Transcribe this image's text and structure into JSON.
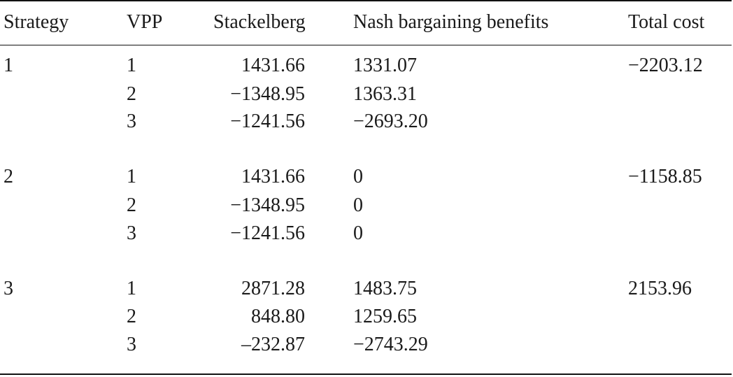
{
  "table": {
    "headers": {
      "strategy": "Strategy",
      "vpp": "VPP",
      "stackelberg": "Stackelberg",
      "nash": "Nash bargaining benefits",
      "total_cost": "Total cost"
    },
    "groups": [
      {
        "strategy": "1",
        "total_cost": "−2203.12",
        "rows": [
          {
            "vpp": "1",
            "stackelberg": "1431.66",
            "nash": "1331.07"
          },
          {
            "vpp": "2",
            "stackelberg": "−1348.95",
            "nash": "1363.31"
          },
          {
            "vpp": "3",
            "stackelberg": "−1241.56",
            "nash": "−2693.20"
          }
        ]
      },
      {
        "strategy": "2",
        "total_cost": "−1158.85",
        "rows": [
          {
            "vpp": "1",
            "stackelberg": "1431.66",
            "nash": "0"
          },
          {
            "vpp": "2",
            "stackelberg": "−1348.95",
            "nash": "0"
          },
          {
            "vpp": "3",
            "stackelberg": "−1241.56",
            "nash": "0"
          }
        ]
      },
      {
        "strategy": "3",
        "total_cost": "2153.96",
        "rows": [
          {
            "vpp": "1",
            "stackelberg": "2871.28",
            "nash": "1483.75"
          },
          {
            "vpp": "2",
            "stackelberg": "848.80",
            "nash": "1259.65"
          },
          {
            "vpp": "3",
            "stackelberg": "–232.87",
            "nash": "−2743.29"
          }
        ]
      }
    ]
  }
}
